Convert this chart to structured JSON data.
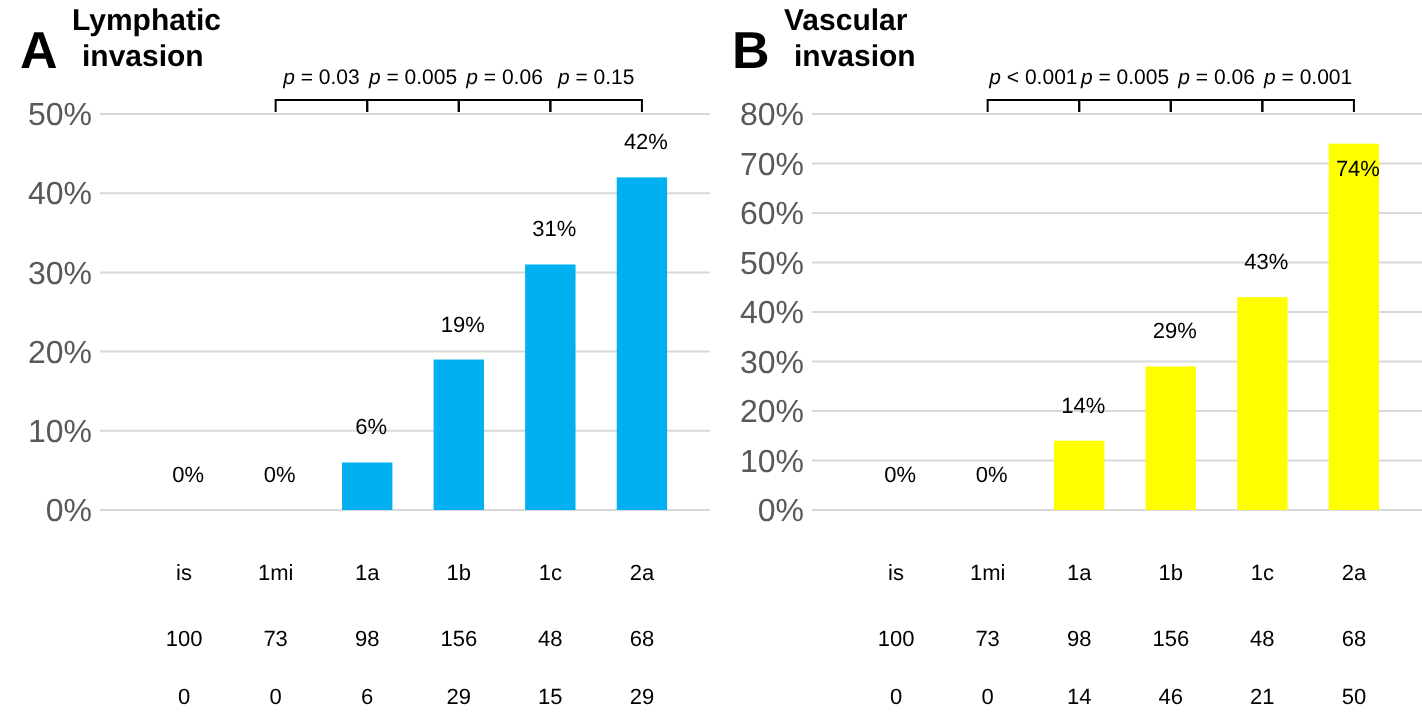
{
  "chart_data": [
    {
      "type": "bar",
      "title": "Lymphatic invasion",
      "categories": [
        "is",
        "1mi",
        "1a",
        "1b",
        "1c",
        "2a"
      ],
      "series": [
        {
          "color": "#00b0f0",
          "values": [
            0,
            0,
            6,
            19,
            31,
            42
          ],
          "value_labels": [
            "0%",
            "0%",
            "6%",
            "19%",
            "31%",
            "42%"
          ]
        }
      ],
      "ylim": [
        0,
        50
      ],
      "yticks": [
        {
          "value": 0,
          "label": "0%"
        },
        {
          "value": 10,
          "label": "10%"
        },
        {
          "value": 20,
          "label": "20%"
        },
        {
          "value": 30,
          "label": "30%"
        },
        {
          "value": 40,
          "label": "40%"
        },
        {
          "value": 50,
          "label": "50%"
        }
      ],
      "grid": "y",
      "annotations": [
        "A",
        "p = 0.03",
        "p = 0.005",
        "p = 0.06",
        "p = 0.15",
        "100",
        "73",
        "98",
        "156",
        "48",
        "68",
        "0",
        "0",
        "6",
        "29",
        "15",
        "29"
      ]
    },
    {
      "type": "bar",
      "title": "Vascular invasion",
      "categories": [
        "is",
        "1mi",
        "1a",
        "1b",
        "1c",
        "2a"
      ],
      "series": [
        {
          "color": "#ffff00",
          "values": [
            0,
            0,
            14,
            29,
            43,
            74
          ],
          "value_labels": [
            "0%",
            "0%",
            "14%",
            "29%",
            "43%",
            "74%"
          ]
        }
      ],
      "ylim": [
        0,
        80
      ],
      "yticks": [
        {
          "value": 0,
          "label": "0%"
        },
        {
          "value": 10,
          "label": "10%"
        },
        {
          "value": 20,
          "label": "20%"
        },
        {
          "value": 30,
          "label": "30%"
        },
        {
          "value": 40,
          "label": "40%"
        },
        {
          "value": 50,
          "label": "50%"
        },
        {
          "value": 60,
          "label": "60%"
        },
        {
          "value": 70,
          "label": "70%"
        },
        {
          "value": 80,
          "label": "80%"
        }
      ],
      "grid": "y",
      "annotations": [
        "B",
        "p < 0.001",
        "p = 0.005",
        "p = 0.06",
        "p = 0.001",
        "100",
        "73",
        "98",
        "156",
        "48",
        "68",
        "0",
        "0",
        "14",
        "46",
        "21",
        "50"
      ]
    }
  ]
}
